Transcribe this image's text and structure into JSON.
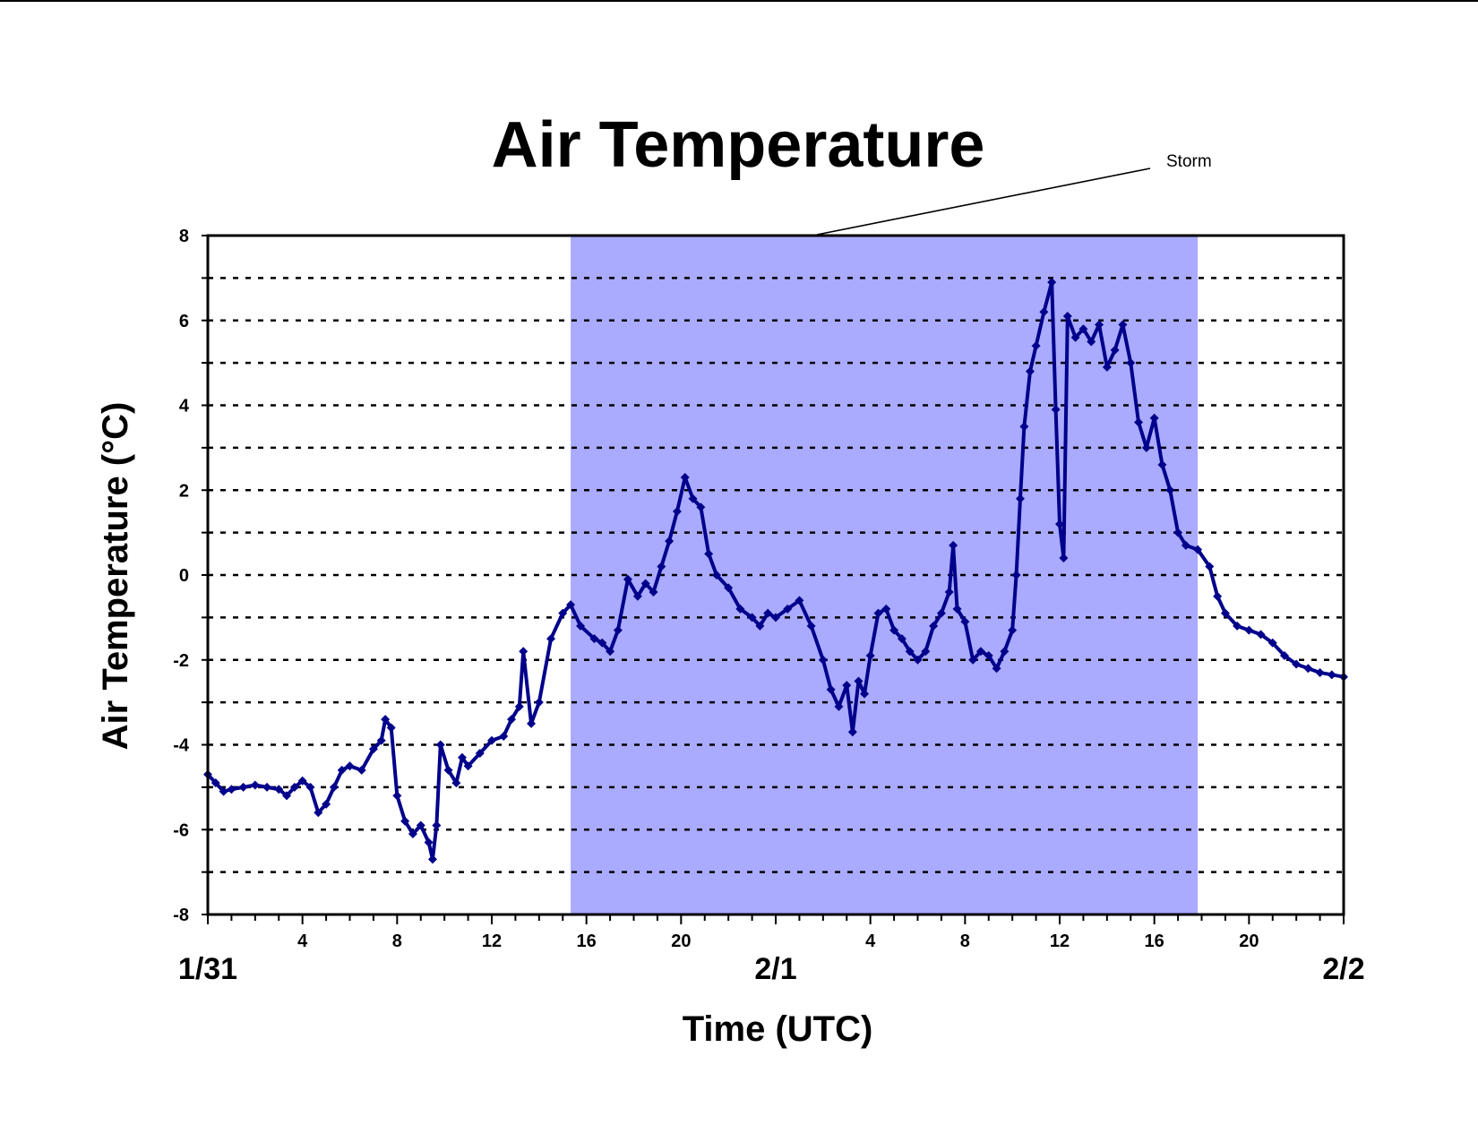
{
  "chart_data": {
    "type": "scatter",
    "title": "Air Temperature",
    "xlabel": "Time (UTC)",
    "ylabel": "Air Temperature (°C)",
    "ylim": [
      -8,
      8
    ],
    "xlim": [
      "1/31 00:00",
      "2/2 00:00"
    ],
    "y_ticks": [
      8,
      6,
      4,
      2,
      0,
      -2,
      -4,
      -6,
      -8
    ],
    "y_gridlines": [
      7,
      6,
      5,
      4,
      3,
      2,
      1,
      0,
      -1,
      -2,
      -3,
      -4,
      -5,
      -6,
      -7
    ],
    "grid": "dashed horizontal",
    "x_tick_labels": [
      {
        "time": "1/31 04:00",
        "label": "4"
      },
      {
        "time": "1/31 08:00",
        "label": "8"
      },
      {
        "time": "1/31 12:00",
        "label": "12"
      },
      {
        "time": "1/31 16:00",
        "label": "16"
      },
      {
        "time": "1/31 20:00",
        "label": "20"
      },
      {
        "time": "2/1 04:00",
        "label": "4"
      },
      {
        "time": "2/1 08:00",
        "label": "8"
      },
      {
        "time": "2/1 12:00",
        "label": "12"
      },
      {
        "time": "2/1 16:00",
        "label": "16"
      },
      {
        "time": "2/1 20:00",
        "label": "20"
      }
    ],
    "date_labels": [
      {
        "time": "1/31 00:00",
        "label": "1/31"
      },
      {
        "time": "2/1 00:00",
        "label": "2/1"
      },
      {
        "time": "2/2 00:00",
        "label": "2/2"
      }
    ],
    "shaded_region": {
      "label": "Storm",
      "start": "1/31 15:20",
      "end": "2/1 17:50",
      "color": "#aaaaff"
    },
    "series": [
      {
        "color": "#00008b",
        "marker": "diamond",
        "points": [
          [
            "1/31 00:00",
            -4.7
          ],
          [
            "1/31 00:20",
            -4.9
          ],
          [
            "1/31 00:40",
            -5.1
          ],
          [
            "1/31 01:00",
            -5.05
          ],
          [
            "1/31 01:30",
            -5.0
          ],
          [
            "1/31 02:00",
            -4.95
          ],
          [
            "1/31 02:30",
            -5.0
          ],
          [
            "1/31 03:00",
            -5.05
          ],
          [
            "1/31 03:20",
            -5.2
          ],
          [
            "1/31 03:40",
            -5.0
          ],
          [
            "1/31 04:00",
            -4.85
          ],
          [
            "1/31 04:20",
            -5.0
          ],
          [
            "1/31 04:40",
            -5.6
          ],
          [
            "1/31 05:00",
            -5.4
          ],
          [
            "1/31 05:20",
            -5.0
          ],
          [
            "1/31 05:40",
            -4.6
          ],
          [
            "1/31 06:00",
            -4.5
          ],
          [
            "1/31 06:30",
            -4.6
          ],
          [
            "1/31 07:00",
            -4.1
          ],
          [
            "1/31 07:20",
            -3.9
          ],
          [
            "1/31 07:30",
            -3.4
          ],
          [
            "1/31 07:45",
            -3.6
          ],
          [
            "1/31 08:00",
            -5.2
          ],
          [
            "1/31 08:20",
            -5.8
          ],
          [
            "1/31 08:40",
            -6.1
          ],
          [
            "1/31 09:00",
            -5.9
          ],
          [
            "1/31 09:20",
            -6.3
          ],
          [
            "1/31 09:30",
            -6.7
          ],
          [
            "1/31 09:40",
            -5.9
          ],
          [
            "1/31 09:50",
            -4.0
          ],
          [
            "1/31 10:10",
            -4.6
          ],
          [
            "1/31 10:30",
            -4.9
          ],
          [
            "1/31 10:45",
            -4.3
          ],
          [
            "1/31 11:00",
            -4.5
          ],
          [
            "1/31 11:30",
            -4.2
          ],
          [
            "1/31 12:00",
            -3.9
          ],
          [
            "1/31 12:30",
            -3.8
          ],
          [
            "1/31 12:50",
            -3.4
          ],
          [
            "1/31 13:10",
            -3.1
          ],
          [
            "1/31 13:20",
            -1.8
          ],
          [
            "1/31 13:40",
            -3.5
          ],
          [
            "1/31 14:00",
            -3.0
          ],
          [
            "1/31 14:30",
            -1.5
          ],
          [
            "1/31 15:00",
            -0.9
          ],
          [
            "1/31 15:20",
            -0.7
          ],
          [
            "1/31 15:45",
            -1.2
          ],
          [
            "1/31 16:20",
            -1.5
          ],
          [
            "1/31 16:40",
            -1.6
          ],
          [
            "1/31 17:00",
            -1.8
          ],
          [
            "1/31 17:20",
            -1.3
          ],
          [
            "1/31 17:45",
            -0.1
          ],
          [
            "1/31 18:10",
            -0.5
          ],
          [
            "1/31 18:30",
            -0.2
          ],
          [
            "1/31 18:50",
            -0.4
          ],
          [
            "1/31 19:10",
            0.2
          ],
          [
            "1/31 19:30",
            0.8
          ],
          [
            "1/31 19:50",
            1.5
          ],
          [
            "1/31 20:10",
            2.3
          ],
          [
            "1/31 20:30",
            1.8
          ],
          [
            "1/31 20:50",
            1.6
          ],
          [
            "1/31 21:10",
            0.5
          ],
          [
            "1/31 21:30",
            0.0
          ],
          [
            "1/31 22:00",
            -0.3
          ],
          [
            "1/31 22:30",
            -0.8
          ],
          [
            "1/31 23:00",
            -1.0
          ],
          [
            "1/31 23:20",
            -1.2
          ],
          [
            "1/31 23:40",
            -0.9
          ],
          [
            "2/1 00:00",
            -1.0
          ],
          [
            "2/1 00:30",
            -0.8
          ],
          [
            "2/1 01:00",
            -0.6
          ],
          [
            "2/1 01:30",
            -1.2
          ],
          [
            "2/1 02:00",
            -2.0
          ],
          [
            "2/1 02:20",
            -2.7
          ],
          [
            "2/1 02:40",
            -3.1
          ],
          [
            "2/1 03:00",
            -2.6
          ],
          [
            "2/1 03:15",
            -3.7
          ],
          [
            "2/1 03:30",
            -2.5
          ],
          [
            "2/1 03:45",
            -2.8
          ],
          [
            "2/1 04:00",
            -1.9
          ],
          [
            "2/1 04:20",
            -0.9
          ],
          [
            "2/1 04:40",
            -0.8
          ],
          [
            "2/1 05:00",
            -1.3
          ],
          [
            "2/1 05:20",
            -1.5
          ],
          [
            "2/1 05:40",
            -1.8
          ],
          [
            "2/1 06:00",
            -2.0
          ],
          [
            "2/1 06:20",
            -1.8
          ],
          [
            "2/1 06:40",
            -1.2
          ],
          [
            "2/1 07:00",
            -0.9
          ],
          [
            "2/1 07:20",
            -0.4
          ],
          [
            "2/1 07:30",
            0.7
          ],
          [
            "2/1 07:40",
            -0.8
          ],
          [
            "2/1 08:00",
            -1.1
          ],
          [
            "2/1 08:20",
            -2.0
          ],
          [
            "2/1 08:40",
            -1.8
          ],
          [
            "2/1 09:00",
            -1.9
          ],
          [
            "2/1 09:20",
            -2.2
          ],
          [
            "2/1 09:40",
            -1.8
          ],
          [
            "2/1 10:00",
            -1.3
          ],
          [
            "2/1 10:10",
            0.0
          ],
          [
            "2/1 10:20",
            1.8
          ],
          [
            "2/1 10:30",
            3.5
          ],
          [
            "2/1 10:45",
            4.8
          ],
          [
            "2/1 11:00",
            5.4
          ],
          [
            "2/1 11:20",
            6.2
          ],
          [
            "2/1 11:40",
            6.9
          ],
          [
            "2/1 11:50",
            3.9
          ],
          [
            "2/1 12:00",
            1.2
          ],
          [
            "2/1 12:10",
            0.4
          ],
          [
            "2/1 12:20",
            6.1
          ],
          [
            "2/1 12:40",
            5.6
          ],
          [
            "2/1 13:00",
            5.8
          ],
          [
            "2/1 13:20",
            5.5
          ],
          [
            "2/1 13:40",
            5.9
          ],
          [
            "2/1 14:00",
            4.9
          ],
          [
            "2/1 14:20",
            5.3
          ],
          [
            "2/1 14:40",
            5.9
          ],
          [
            "2/1 15:00",
            5.0
          ],
          [
            "2/1 15:20",
            3.6
          ],
          [
            "2/1 15:40",
            3.0
          ],
          [
            "2/1 16:00",
            3.7
          ],
          [
            "2/1 16:20",
            2.6
          ],
          [
            "2/1 16:40",
            2.0
          ],
          [
            "2/1 17:00",
            1.0
          ],
          [
            "2/1 17:20",
            0.7
          ],
          [
            "2/1 17:50",
            0.6
          ],
          [
            "2/1 18:20",
            0.2
          ],
          [
            "2/1 18:40",
            -0.5
          ],
          [
            "2/1 19:00",
            -0.9
          ],
          [
            "2/1 19:30",
            -1.2
          ],
          [
            "2/1 20:00",
            -1.3
          ],
          [
            "2/1 20:30",
            -1.4
          ],
          [
            "2/1 21:00",
            -1.6
          ],
          [
            "2/1 21:30",
            -1.9
          ],
          [
            "2/1 22:00",
            -2.1
          ],
          [
            "2/1 22:30",
            -2.2
          ],
          [
            "2/1 23:00",
            -2.3
          ],
          [
            "2/1 23:30",
            -2.35
          ],
          [
            "2/2 00:00",
            -2.4
          ]
        ]
      }
    ]
  }
}
